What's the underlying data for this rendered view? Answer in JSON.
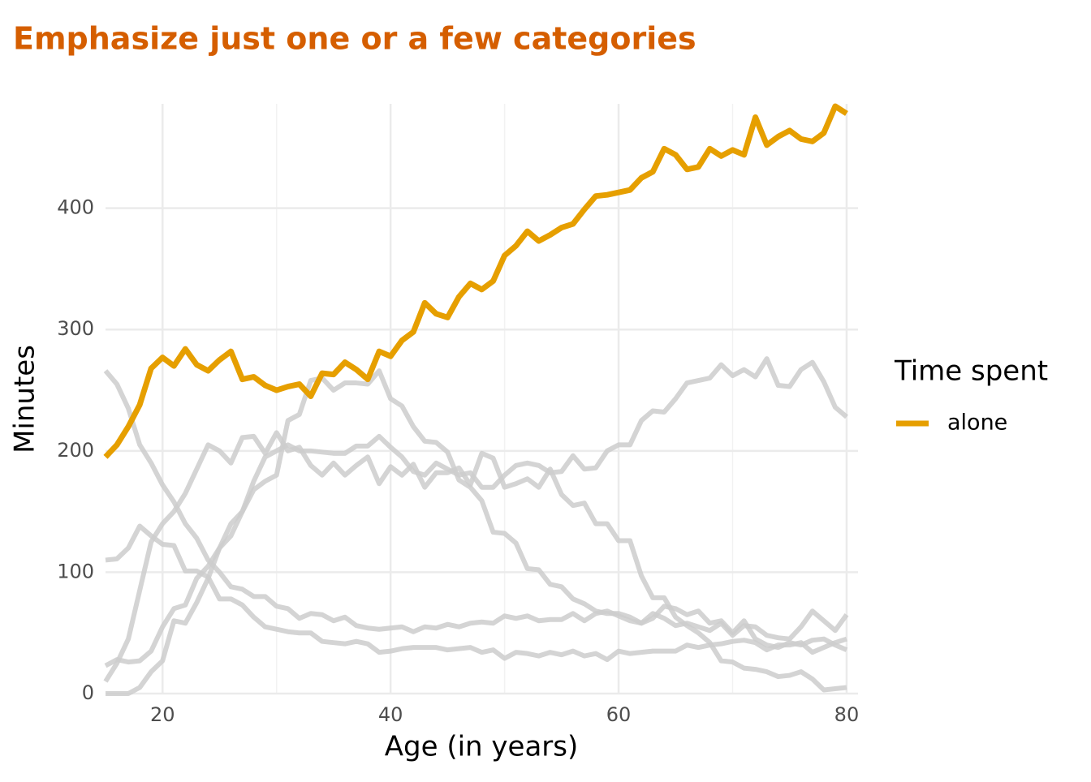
{
  "chart_data": {
    "type": "line",
    "title": "Emphasize just one or a few categories",
    "x_label": "Age (in years)",
    "y_label": "Minutes",
    "legend_title": "Time spent",
    "legend_position": "right",
    "x": [
      15,
      16,
      17,
      18,
      19,
      20,
      21,
      22,
      23,
      24,
      25,
      26,
      27,
      28,
      29,
      30,
      31,
      32,
      33,
      34,
      35,
      36,
      37,
      38,
      39,
      40,
      41,
      42,
      43,
      44,
      45,
      46,
      47,
      48,
      49,
      50,
      51,
      52,
      53,
      54,
      55,
      56,
      57,
      58,
      59,
      60,
      61,
      62,
      63,
      64,
      65,
      66,
      67,
      68,
      69,
      70,
      71,
      72,
      73,
      74,
      75,
      76,
      77,
      78,
      79,
      80
    ],
    "xlim": [
      15,
      81
    ],
    "xticks": [
      20,
      40,
      60,
      80
    ],
    "xminor": [
      30,
      50,
      70
    ],
    "ylim": [
      0,
      486
    ],
    "yticks": [
      0,
      100,
      200,
      300,
      400
    ],
    "grid": true,
    "series": [
      {
        "name": "alone",
        "color": "#E69F00",
        "values": [
          195,
          205,
          220,
          238,
          268,
          277,
          270,
          284,
          271,
          266,
          275,
          282,
          259,
          261,
          254,
          250,
          253,
          255,
          245,
          264,
          263,
          273,
          267,
          259,
          282,
          278,
          291,
          298,
          322,
          313,
          310,
          327,
          338,
          333,
          340,
          361,
          369,
          381,
          373,
          378,
          384,
          387,
          399,
          410,
          411,
          413,
          415,
          425,
          430,
          449,
          444,
          432,
          434,
          449,
          443,
          448,
          444,
          475,
          452,
          459,
          464,
          457,
          455,
          462,
          484,
          478
        ]
      },
      {
        "color": "#cccccc",
        "values": [
          266,
          255,
          235,
          205,
          190,
          172,
          158,
          140,
          128,
          110,
          100,
          88,
          86,
          80,
          80,
          72,
          70,
          62,
          66,
          65,
          60,
          63,
          56,
          54,
          53,
          54,
          55,
          51,
          55,
          54,
          57,
          55,
          58,
          59,
          58,
          64,
          62,
          64,
          60,
          61,
          61,
          66,
          60,
          66,
          68,
          64,
          60,
          58,
          66,
          62,
          56,
          58,
          55,
          52,
          58,
          48,
          56,
          55,
          48,
          46,
          45,
          55,
          68,
          60,
          52,
          65
        ]
      },
      {
        "color": "#cccccc",
        "values": [
          110,
          111,
          120,
          138,
          130,
          123,
          122,
          101,
          101,
          96,
          78,
          78,
          73,
          63,
          55,
          53,
          51,
          50,
          50,
          43,
          42,
          41,
          43,
          41,
          34,
          35,
          37,
          38,
          38,
          38,
          36,
          37,
          38,
          34,
          36,
          29,
          34,
          33,
          31,
          34,
          32,
          35,
          31,
          33,
          28,
          35,
          33,
          34,
          35,
          35,
          35,
          40,
          38,
          40,
          41,
          43,
          44,
          42,
          36,
          40,
          40,
          42,
          34,
          38,
          42,
          45
        ]
      },
      {
        "color": "#cccccc",
        "values": [
          10,
          25,
          45,
          85,
          125,
          140,
          150,
          165,
          185,
          205,
          200,
          190,
          211,
          212,
          198,
          215,
          200,
          203,
          188,
          180,
          190,
          180,
          188,
          195,
          173,
          187,
          180,
          189,
          170,
          182,
          182,
          186,
          172,
          198,
          194,
          170,
          173,
          177,
          170,
          185,
          164,
          155,
          157,
          140,
          140,
          126,
          126,
          97,
          79,
          79,
          63,
          56,
          50,
          42,
          27,
          26,
          21,
          20,
          18,
          14,
          15,
          18,
          12,
          3,
          4,
          5
        ]
      },
      {
        "color": "#cccccc",
        "values": [
          0,
          0,
          0,
          5,
          18,
          27,
          60,
          58,
          75,
          95,
          120,
          130,
          150,
          168,
          175,
          180,
          225,
          230,
          258,
          260,
          250,
          256,
          256,
          255,
          266,
          243,
          237,
          220,
          208,
          207,
          199,
          176,
          170,
          159,
          133,
          132,
          124,
          103,
          102,
          90,
          88,
          78,
          74,
          68,
          66,
          66,
          63,
          58,
          62,
          72,
          70,
          65,
          68,
          58,
          60,
          50,
          60,
          45,
          40,
          38,
          42,
          40,
          44,
          45,
          40,
          36
        ]
      },
      {
        "color": "#cccccc",
        "values": [
          23,
          28,
          26,
          27,
          35,
          55,
          70,
          73,
          95,
          105,
          120,
          140,
          150,
          175,
          195,
          200,
          205,
          200,
          200,
          199,
          198,
          198,
          204,
          204,
          212,
          203,
          195,
          183,
          180,
          190,
          185,
          180,
          182,
          170,
          170,
          180,
          188,
          190,
          188,
          182,
          183,
          196,
          185,
          186,
          200,
          205,
          205,
          225,
          233,
          232,
          243,
          256,
          258,
          260,
          271,
          262,
          267,
          261,
          276,
          254,
          253,
          267,
          273,
          257,
          236,
          228
        ]
      }
    ]
  }
}
